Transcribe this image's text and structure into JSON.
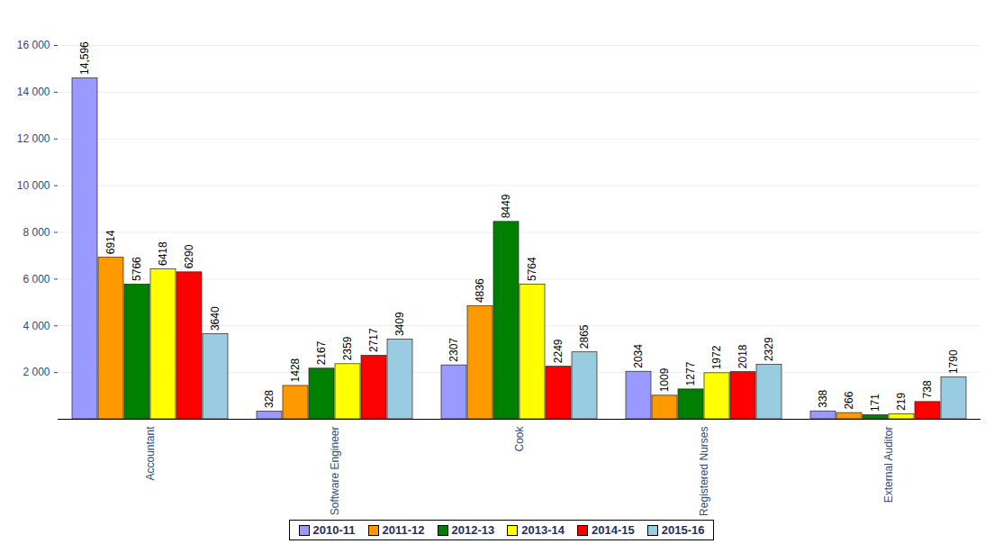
{
  "chart_data": {
    "type": "bar",
    "categories": [
      "Accountant",
      "Software Engineer",
      "Cook",
      "Registered Nurses",
      "External Auditor"
    ],
    "series": [
      {
        "name": "2010-11",
        "color": "#9999ff",
        "values": [
          14596,
          328,
          2307,
          2034,
          338
        ],
        "value_labels": [
          "14,596",
          "328",
          "2307",
          "2034",
          "338"
        ]
      },
      {
        "name": "2011-12",
        "color": "#ff9900",
        "values": [
          6914,
          1428,
          4836,
          1009,
          266
        ]
      },
      {
        "name": "2012-13",
        "color": "#008000",
        "values": [
          5766,
          2167,
          8449,
          1277,
          171
        ]
      },
      {
        "name": "2013-14",
        "color": "#ffff00",
        "values": [
          6418,
          2359,
          5764,
          1972,
          219
        ]
      },
      {
        "name": "2014-15",
        "color": "#ff0000",
        "values": [
          6290,
          2717,
          2249,
          2018,
          738
        ]
      },
      {
        "name": "2015-16",
        "color": "#99cce0",
        "values": [
          3640,
          3409,
          2865,
          2329,
          1790
        ]
      }
    ],
    "ylim": [
      0,
      16000
    ],
    "yticks": [
      {
        "value": 2000,
        "label": "2 000"
      },
      {
        "value": 4000,
        "label": "4 000"
      },
      {
        "value": 6000,
        "label": "6 000"
      },
      {
        "value": 8000,
        "label": "8 000"
      },
      {
        "value": 10000,
        "label": "10 000"
      },
      {
        "value": 12000,
        "label": "12 000"
      },
      {
        "value": 14000,
        "label": "14 000"
      },
      {
        "value": 16000,
        "label": "16 000"
      }
    ],
    "grid": true,
    "data_labels": true,
    "legend": "bottom"
  }
}
